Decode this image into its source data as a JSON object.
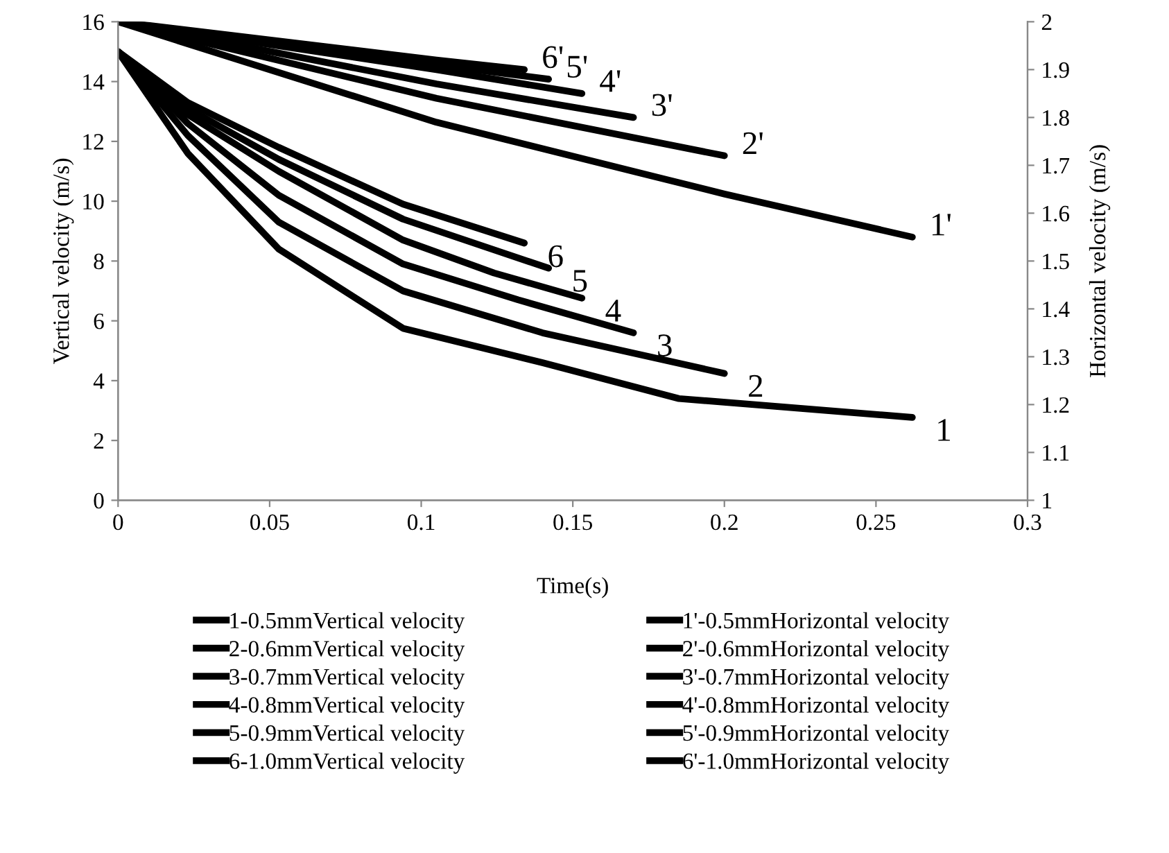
{
  "chart_data": {
    "type": "line",
    "xlabel": "Time(s)",
    "ylabel": "Vertical velocity (m/s)",
    "y2label": "Horizontal velocity (m/s)",
    "xlim": [
      0,
      0.3
    ],
    "xticks": [
      0,
      0.05,
      0.1,
      0.15,
      0.2,
      0.25,
      0.3
    ],
    "ylim": [
      0,
      16
    ],
    "yticks": [
      0,
      2,
      4,
      6,
      8,
      10,
      12,
      14,
      16
    ],
    "y2lim": [
      1,
      2
    ],
    "y2ticks": [
      1,
      1.1,
      1.2,
      1.3,
      1.4,
      1.5,
      1.6,
      1.7,
      1.8,
      1.9,
      2
    ],
    "grid": false,
    "legend": "bottom",
    "marker": "none",
    "line_style": "solid",
    "series": [
      {
        "name": "1-0.5mmVertical velocity",
        "color": "#000000",
        "x": [
          0,
          0.023,
          0.053,
          0.094,
          0.14,
          0.185,
          0.262
        ],
        "values": [
          15,
          11.6,
          8.4,
          5.75,
          4.6,
          3.4,
          2.77
        ]
      },
      {
        "name": "2-0.6mmVertical velocity",
        "color": "#000000",
        "x": [
          0,
          0.023,
          0.053,
          0.094,
          0.14,
          0.2
        ],
        "values": [
          15,
          12.2,
          9.3,
          7.0,
          5.6,
          4.24
        ]
      },
      {
        "name": "3-0.7mmVertical velocity",
        "color": "#000000",
        "x": [
          0,
          0.023,
          0.053,
          0.094,
          0.132,
          0.17
        ],
        "values": [
          15,
          12.6,
          10.2,
          7.9,
          6.7,
          5.6
        ]
      },
      {
        "name": "4-0.8mmVertical velocity",
        "color": "#000000",
        "x": [
          0,
          0.023,
          0.053,
          0.094,
          0.124,
          0.153
        ],
        "values": [
          15,
          12.9,
          11.0,
          8.7,
          7.6,
          6.76
        ]
      },
      {
        "name": "5-0.9mmVertical velocity",
        "color": "#000000",
        "x": [
          0,
          0.023,
          0.053,
          0.094,
          0.142
        ],
        "values": [
          15,
          13.1,
          11.4,
          9.4,
          7.76
        ]
      },
      {
        "name": "6-1.0mmVertical velocity",
        "color": "#000000",
        "x": [
          0,
          0.023,
          0.053,
          0.094,
          0.134
        ],
        "values": [
          15,
          13.3,
          11.8,
          9.9,
          8.6
        ]
      },
      {
        "name": "1'-0.5mmHorizontal velocity",
        "color": "#000000",
        "axis": "y2",
        "x": [
          0,
          0.105,
          0.2,
          0.262
        ],
        "values": [
          2,
          1.79,
          1.64,
          1.55
        ]
      },
      {
        "name": "2'-0.6mmHorizontal velocity",
        "color": "#000000",
        "axis": "y2",
        "x": [
          0,
          0.105,
          0.2
        ],
        "values": [
          2,
          1.84,
          1.72
        ]
      },
      {
        "name": "3'-0.7mmHorizontal velocity",
        "color": "#000000",
        "axis": "y2",
        "x": [
          0,
          0.105,
          0.17
        ],
        "values": [
          2,
          1.87,
          1.8
        ]
      },
      {
        "name": "4'-0.8mmHorizontal velocity",
        "color": "#000000",
        "axis": "y2",
        "x": [
          0,
          0.105,
          0.153
        ],
        "values": [
          2,
          1.9,
          1.85
        ]
      },
      {
        "name": "5'-0.9mmHorizontal velocity",
        "color": "#000000",
        "axis": "y2",
        "x": [
          0,
          0.105,
          0.142
        ],
        "values": [
          2,
          1.91,
          1.88
        ]
      },
      {
        "name": "6'-1.0mmHorizontal velocity",
        "color": "#000000",
        "axis": "y2",
        "x": [
          0,
          0.105,
          0.134
        ],
        "values": [
          2,
          1.92,
          1.9
        ]
      }
    ],
    "annotations": [
      {
        "text": "1",
        "x": 0.262,
        "y": 2.77
      },
      {
        "text": "2",
        "x": 0.2,
        "y": 4.24
      },
      {
        "text": "3",
        "x": 0.17,
        "y": 5.6
      },
      {
        "text": "4",
        "x": 0.153,
        "y": 6.76
      },
      {
        "text": "5",
        "x": 0.142,
        "y": 7.76
      },
      {
        "text": "6",
        "x": 0.134,
        "y": 8.58
      },
      {
        "text": "1'",
        "x": 0.262,
        "y": 8.8
      },
      {
        "text": "2'",
        "x": 0.2,
        "y": 11.52
      },
      {
        "text": "3'",
        "x": 0.17,
        "y": 12.8
      },
      {
        "text": "4'",
        "x": 0.153,
        "y": 13.6
      },
      {
        "text": "5'",
        "x": 0.142,
        "y": 14.08
      },
      {
        "text": "6'",
        "x": 0.134,
        "y": 14.4
      }
    ]
  }
}
